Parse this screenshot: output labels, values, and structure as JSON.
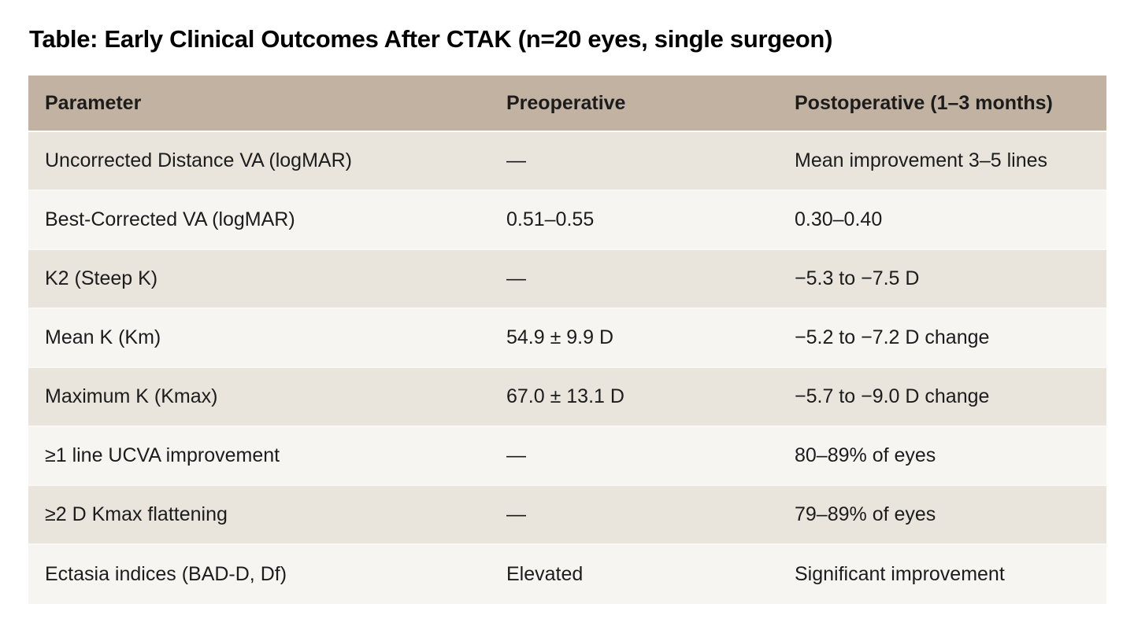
{
  "title": "Table: Early Clinical Outcomes After CTAK (n=20 eyes, single surgeon)",
  "table": {
    "columns": [
      "Parameter",
      "Preoperative",
      "Postoperative (1–3 months)"
    ],
    "rows": [
      [
        "Uncorrected Distance VA (logMAR)",
        "—",
        "Mean improvement 3–5 lines"
      ],
      [
        "Best-Corrected VA (logMAR)",
        "0.51–0.55",
        "0.30–0.40"
      ],
      [
        "K2 (Steep K)",
        "—",
        "−5.3 to −7.5 D"
      ],
      [
        "Mean K (Km)",
        "54.9 ± 9.9 D",
        "−5.2 to −7.2 D change"
      ],
      [
        "Maximum K (Kmax)",
        "67.0 ± 13.1 D",
        "−5.7 to −9.0 D change"
      ],
      [
        "≥1 line UCVA improvement",
        "—",
        "80–89% of eyes"
      ],
      [
        "≥2 D Kmax flattening",
        "—",
        "79–89% of eyes"
      ],
      [
        "Ectasia indices (BAD-D, Df)",
        "Elevated",
        "Significant improvement"
      ]
    ]
  },
  "chart_data": {
    "type": "table",
    "title": "Table: Early Clinical Outcomes After CTAK (n=20 eyes, single surgeon)",
    "columns": [
      "Parameter",
      "Preoperative",
      "Postoperative (1–3 months)"
    ],
    "rows": [
      [
        "Uncorrected Distance VA (logMAR)",
        "—",
        "Mean improvement 3–5 lines"
      ],
      [
        "Best-Corrected VA (logMAR)",
        "0.51–0.55",
        "0.30–0.40"
      ],
      [
        "K2 (Steep K)",
        "—",
        "−5.3 to −7.5 D"
      ],
      [
        "Mean K (Km)",
        "54.9 ± 9.9 D",
        "−5.2 to −7.2 D change"
      ],
      [
        "Maximum K (Kmax)",
        "67.0 ± 13.1 D",
        "−5.7 to −9.0 D change"
      ],
      [
        "≥1 line UCVA improvement",
        "—",
        "80–89% of eyes"
      ],
      [
        "≥2 D Kmax flattening",
        "—",
        "79–89% of eyes"
      ],
      [
        "Ectasia indices (BAD-D, Df)",
        "Elevated",
        "Significant improvement"
      ]
    ]
  },
  "colors": {
    "header_bg": "#c2b2a2",
    "row_odd_bg": "#e9e4dc",
    "row_even_bg": "#f7f5f1",
    "row_sep": "#faf8f5",
    "text": "#1c1c1c",
    "page_bg": "#ffffff"
  }
}
